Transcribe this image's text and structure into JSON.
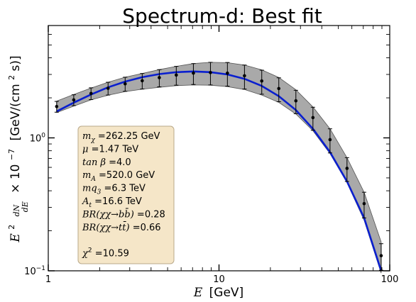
{
  "chart_data": {
    "type": "line",
    "title": "Spectrum-d: Best fit",
    "xlabel_prefix": "E",
    "xlabel_unit": "[GeV]",
    "ylabel_main": "E",
    "ylabel_pow": "2",
    "ylabel_frac_num": "dN",
    "ylabel_frac_den": "dE",
    "ylabel_scale": "× 10",
    "ylabel_scale_exp": "−7",
    "ylabel_unit": "[GeV/(cm",
    "ylabel_unit_exp": "2",
    "ylabel_unit_end": " s)]",
    "x_scale": "log",
    "y_scale": "log",
    "xlim": [
      1,
      100
    ],
    "ylim": [
      0.1,
      7
    ],
    "x_ticks": [
      {
        "value": 1,
        "label": "1"
      },
      {
        "value": 10,
        "label": "10"
      },
      {
        "value": 100,
        "label": "100"
      }
    ],
    "y_ticks": [
      {
        "value": 0.1,
        "label_base": "10",
        "label_exp": "−1"
      },
      {
        "value": 1,
        "label_base": "10",
        "label_exp": "0"
      }
    ],
    "grid": false,
    "series": [
      {
        "kind": "data_points",
        "color": "#000000",
        "points": [
          {
            "x": 1.12,
            "y": 1.72
          },
          {
            "x": 1.41,
            "y": 1.93
          },
          {
            "x": 1.78,
            "y": 2.16
          },
          {
            "x": 2.24,
            "y": 2.36
          },
          {
            "x": 2.82,
            "y": 2.55
          },
          {
            "x": 3.55,
            "y": 2.69
          },
          {
            "x": 4.47,
            "y": 2.84
          },
          {
            "x": 5.62,
            "y": 2.97
          },
          {
            "x": 7.08,
            "y": 3.07
          },
          {
            "x": 8.91,
            "y": 3.1
          },
          {
            "x": 11.2,
            "y": 3.07
          },
          {
            "x": 14.1,
            "y": 2.93
          },
          {
            "x": 17.8,
            "y": 2.68
          },
          {
            "x": 22.4,
            "y": 2.35
          },
          {
            "x": 28.2,
            "y": 1.9
          },
          {
            "x": 35.5,
            "y": 1.42
          },
          {
            "x": 44.7,
            "y": 0.97
          },
          {
            "x": 56.2,
            "y": 0.59
          },
          {
            "x": 70.8,
            "y": 0.32
          },
          {
            "x": 89.1,
            "y": 0.13
          }
        ],
        "errors": [
          0.16,
          0.18,
          0.22,
          0.26,
          0.31,
          0.36,
          0.42,
          0.48,
          0.55,
          0.6,
          0.62,
          0.6,
          0.55,
          0.48,
          0.38,
          0.28,
          0.2,
          0.12,
          0.07,
          0.03
        ]
      },
      {
        "kind": "model_band",
        "color": "#a9a9a9",
        "x": [
          1.12,
          1.41,
          1.78,
          2.24,
          2.82,
          3.55,
          4.47,
          5.62,
          7.08,
          8.91,
          11.2,
          14.1,
          17.8,
          22.4,
          28.2,
          35.5,
          44.7,
          56.2,
          70.8,
          89.1
        ],
        "lower": [
          1.55,
          1.73,
          1.93,
          2.09,
          2.23,
          2.32,
          2.4,
          2.47,
          2.5,
          2.49,
          2.43,
          2.31,
          2.1,
          1.85,
          1.51,
          1.13,
          0.76,
          0.46,
          0.24,
          0.096
        ],
        "upper": [
          1.89,
          2.12,
          2.37,
          2.62,
          2.86,
          3.05,
          3.26,
          3.45,
          3.62,
          3.7,
          3.68,
          3.53,
          3.25,
          2.85,
          2.3,
          1.71,
          1.17,
          0.71,
          0.39,
          0.165
        ]
      },
      {
        "kind": "best_fit_line",
        "color": "#0a1fcf",
        "x": [
          1.12,
          1.41,
          1.78,
          2.24,
          2.82,
          3.55,
          4.47,
          5.62,
          7.08,
          8.91,
          11.2,
          14.1,
          17.8,
          22.4,
          28.2,
          35.5,
          44.7,
          56.2,
          70.8,
          89.1
        ],
        "y": [
          1.58,
          1.84,
          2.12,
          2.4,
          2.65,
          2.86,
          3.02,
          3.12,
          3.16,
          3.12,
          3.0,
          2.78,
          2.46,
          2.06,
          1.62,
          1.17,
          0.78,
          0.47,
          0.25,
          0.1
        ]
      }
    ],
    "annotation_box": {
      "placement": "lower-left",
      "background": "#f5e6c8",
      "lines": [
        {
          "label": "m",
          "sub": "χ",
          "value": "262.25 GeV"
        },
        {
          "label": "μ",
          "sub": "",
          "value": "1.47 TeV"
        },
        {
          "label": "tan β",
          "sub": "",
          "value": "4.0"
        },
        {
          "label": "m",
          "sub": "A",
          "value": "520.0 GeV"
        },
        {
          "label": "mq",
          "sub": "3",
          "value": "6.3 TeV"
        },
        {
          "label": "A",
          "sub": "t",
          "value": "16.6 TeV"
        },
        {
          "label": "BR(χχ→bb̄)",
          "sub": "",
          "value": "0.28"
        },
        {
          "label": "BR(χχ→tt̄)",
          "sub": "",
          "value": "0.66"
        },
        {
          "label": "",
          "sub": "",
          "value": ""
        },
        {
          "label": "χ",
          "sub": "",
          "sup": "2",
          "value": "10.59"
        }
      ]
    }
  }
}
